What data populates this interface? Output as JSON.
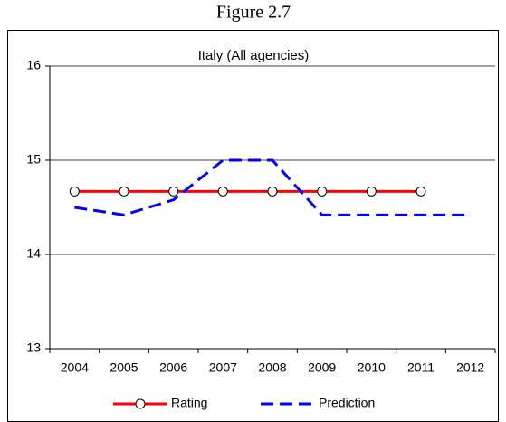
{
  "chart_data": {
    "type": "line",
    "caption": "Figure 2.7",
    "title": "Italy (All agencies)",
    "categories": [
      "2004",
      "2005",
      "2006",
      "2007",
      "2008",
      "2009",
      "2010",
      "2011",
      "2012"
    ],
    "series": [
      {
        "name": "Rating",
        "color": "#ff0000",
        "values": [
          14.67,
          14.67,
          14.67,
          14.67,
          14.67,
          14.67,
          14.67,
          14.67,
          null
        ]
      },
      {
        "name": "Prediction",
        "color": "#0000ff",
        "values": [
          14.5,
          14.42,
          14.58,
          15.0,
          15.0,
          14.42,
          14.42,
          14.42,
          14.42
        ]
      }
    ],
    "ylim": [
      13,
      16
    ],
    "yticks": [
      13,
      14,
      15,
      16
    ],
    "grid": true,
    "legend": "bottom"
  }
}
